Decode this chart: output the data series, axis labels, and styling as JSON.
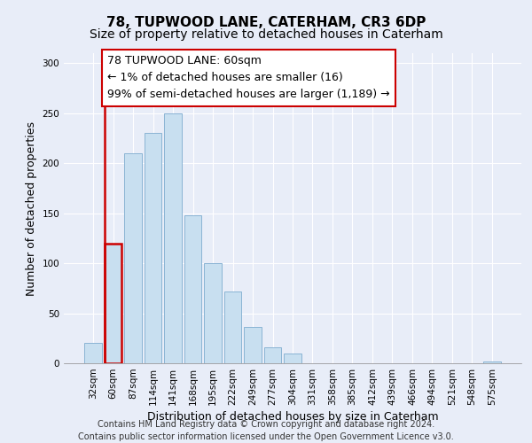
{
  "title": "78, TUPWOOD LANE, CATERHAM, CR3 6DP",
  "subtitle": "Size of property relative to detached houses in Caterham",
  "xlabel": "Distribution of detached houses by size in Caterham",
  "ylabel": "Number of detached properties",
  "bar_labels": [
    "32sqm",
    "60sqm",
    "87sqm",
    "114sqm",
    "141sqm",
    "168sqm",
    "195sqm",
    "222sqm",
    "249sqm",
    "277sqm",
    "304sqm",
    "331sqm",
    "358sqm",
    "385sqm",
    "412sqm",
    "439sqm",
    "466sqm",
    "494sqm",
    "521sqm",
    "548sqm",
    "575sqm"
  ],
  "bar_values": [
    20,
    120,
    210,
    230,
    250,
    148,
    100,
    72,
    36,
    16,
    10,
    0,
    0,
    0,
    0,
    0,
    0,
    0,
    0,
    0,
    2
  ],
  "highlight_bar_index": 1,
  "bar_color": "#c8dff0",
  "highlight_edge_color": "#cc0000",
  "normal_edge_color": "#8ab4d4",
  "annotation_text": "78 TUPWOOD LANE: 60sqm\n← 1% of detached houses are smaller (16)\n99% of semi-detached houses are larger (1,189) →",
  "annotation_box_edge_color": "#cc0000",
  "ylim": [
    0,
    310
  ],
  "yticks": [
    0,
    50,
    100,
    150,
    200,
    250,
    300
  ],
  "footer_line1": "Contains HM Land Registry data © Crown copyright and database right 2024.",
  "footer_line2": "Contains public sector information licensed under the Open Government Licence v3.0.",
  "title_fontsize": 11,
  "subtitle_fontsize": 10,
  "xlabel_fontsize": 9,
  "ylabel_fontsize": 9,
  "tick_fontsize": 7.5,
  "footer_fontsize": 7,
  "annotation_fontsize": 9,
  "bg_color": "#e8edf8",
  "plot_bg_color": "#e8edf8",
  "grid_color": "#ffffff"
}
